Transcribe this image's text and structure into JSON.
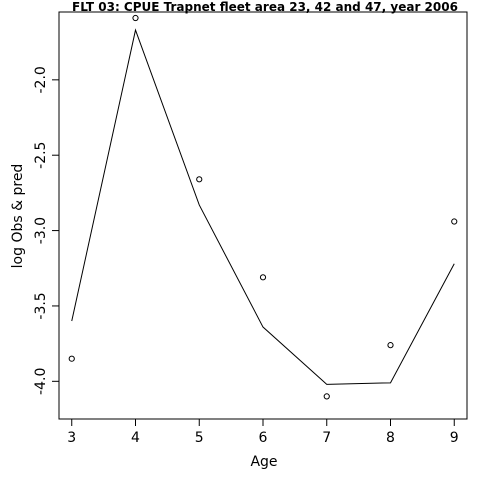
{
  "chart_data": {
    "type": "line",
    "title": "FLT 03: CPUE Trapnet fleet area 23, 42 and 47, year 2006",
    "xlabel": "Age",
    "ylabel": "log Obs & pred",
    "x": [
      3,
      4,
      5,
      6,
      7,
      8,
      9
    ],
    "xlim": [
      2.8,
      9.2
    ],
    "ylim": [
      -4.25,
      -1.55
    ],
    "x_ticks": [
      3,
      4,
      5,
      6,
      7,
      8,
      9
    ],
    "y_ticks": [
      -4.0,
      -3.5,
      -3.0,
      -2.5,
      -2.0
    ],
    "y_tick_labels": [
      "-4.0",
      "-3.5",
      "-3.0",
      "-2.5",
      "-2.0"
    ],
    "series": [
      {
        "style": "points",
        "values": [
          -3.85,
          -1.59,
          -2.66,
          -3.31,
          -4.1,
          -3.76,
          -2.94
        ]
      },
      {
        "style": "line",
        "values": [
          -3.6,
          -1.67,
          -2.83,
          -3.64,
          -4.02,
          -4.01,
          -3.22
        ]
      }
    ],
    "grid": false,
    "legend": "none"
  }
}
